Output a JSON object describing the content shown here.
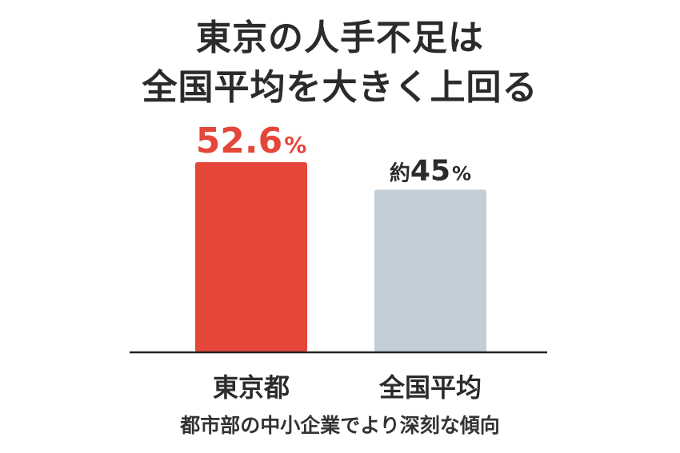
{
  "title": {
    "line1": "東京の人手不足は",
    "line2": "全国平均を大きく上回る"
  },
  "chart_data": {
    "type": "bar",
    "categories": [
      "東京都",
      "全国平均"
    ],
    "values": [
      52.6,
      45
    ],
    "unit": "%",
    "data_labels": [
      {
        "prefix": "",
        "value": "52.6",
        "unit": "%"
      },
      {
        "prefix": "約",
        "value": "45",
        "unit": "%"
      }
    ],
    "bar_colors": [
      "#e5463a",
      "#c3ced6"
    ],
    "label_colors": [
      "#e5463a",
      "#2b2b2b"
    ],
    "grid": false,
    "legend": "none"
  },
  "footer": "都市部の中小企業でより深刻な傾向"
}
